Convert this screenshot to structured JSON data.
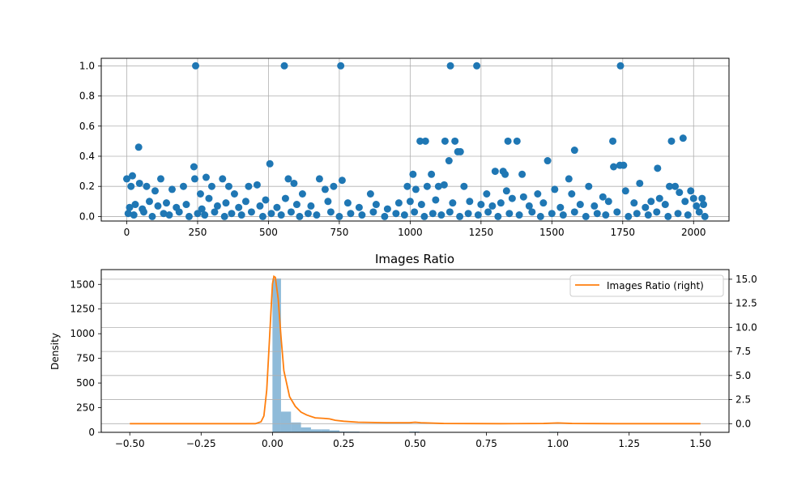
{
  "chart_data": [
    {
      "type": "scatter",
      "title": "",
      "xlabel": "",
      "ylabel": "",
      "xlim": [
        -90,
        2125
      ],
      "ylim": [
        -0.03,
        1.05
      ],
      "grid": true,
      "xticks": [
        0,
        250,
        500,
        750,
        1000,
        1250,
        1500,
        1750,
        2000
      ],
      "yticks": [
        0.0,
        0.2,
        0.4,
        0.6,
        0.8,
        1.0
      ],
      "ytick_labels": [
        "0.0",
        "0.2",
        "0.4",
        "0.6",
        "0.8",
        "1.0"
      ],
      "color": "#1f77b4",
      "points": [
        [
          243,
          1.0
        ],
        [
          556,
          1.0
        ],
        [
          755,
          1.0
        ],
        [
          1142,
          1.0
        ],
        [
          1235,
          1.0
        ],
        [
          1742,
          1.0
        ],
        [
          42,
          0.46
        ],
        [
          1580,
          0.44
        ],
        [
          1168,
          0.43
        ],
        [
          1177,
          0.43
        ],
        [
          1137,
          0.37
        ],
        [
          1485,
          0.37
        ],
        [
          505,
          0.35
        ],
        [
          1753,
          0.34
        ],
        [
          1718,
          0.33
        ],
        [
          1740,
          0.34
        ],
        [
          237,
          0.33
        ],
        [
          1963,
          0.52
        ],
        [
          1035,
          0.5
        ],
        [
          1054,
          0.5
        ],
        [
          1123,
          0.5
        ],
        [
          1158,
          0.5
        ],
        [
          1345,
          0.5
        ],
        [
          1377,
          0.5
        ],
        [
          1715,
          0.5
        ],
        [
          1922,
          0.5
        ],
        [
          1873,
          0.32
        ],
        [
          1300,
          0.3
        ],
        [
          1328,
          0.3
        ],
        [
          1335,
          0.28
        ],
        [
          1395,
          0.28
        ],
        [
          1010,
          0.28
        ],
        [
          1075,
          0.28
        ],
        [
          1935,
          0.2
        ],
        [
          0,
          0.25
        ],
        [
          20,
          0.27
        ],
        [
          45,
          0.22
        ],
        [
          120,
          0.25
        ],
        [
          240,
          0.25
        ],
        [
          280,
          0.26
        ],
        [
          338,
          0.25
        ],
        [
          570,
          0.25
        ],
        [
          680,
          0.25
        ],
        [
          760,
          0.24
        ],
        [
          1560,
          0.25
        ],
        [
          1630,
          0.2
        ],
        [
          1810,
          0.22
        ],
        [
          1915,
          0.2
        ],
        [
          1990,
          0.17
        ],
        [
          2030,
          0.12
        ],
        [
          15,
          0.2
        ],
        [
          70,
          0.2
        ],
        [
          100,
          0.17
        ],
        [
          160,
          0.18
        ],
        [
          200,
          0.2
        ],
        [
          260,
          0.15
        ],
        [
          300,
          0.2
        ],
        [
          360,
          0.2
        ],
        [
          380,
          0.15
        ],
        [
          430,
          0.2
        ],
        [
          460,
          0.21
        ],
        [
          590,
          0.22
        ],
        [
          620,
          0.15
        ],
        [
          700,
          0.18
        ],
        [
          730,
          0.2
        ],
        [
          860,
          0.15
        ],
        [
          990,
          0.2
        ],
        [
          1020,
          0.18
        ],
        [
          1060,
          0.2
        ],
        [
          1100,
          0.2
        ],
        [
          1120,
          0.21
        ],
        [
          1190,
          0.2
        ],
        [
          1270,
          0.15
        ],
        [
          1340,
          0.17
        ],
        [
          1400,
          0.13
        ],
        [
          1450,
          0.15
        ],
        [
          1510,
          0.18
        ],
        [
          1570,
          0.15
        ],
        [
          1680,
          0.13
        ],
        [
          1760,
          0.17
        ],
        [
          1850,
          0.1
        ],
        [
          1950,
          0.16
        ],
        [
          2000,
          0.12
        ],
        [
          10,
          0.06
        ],
        [
          30,
          0.08
        ],
        [
          55,
          0.05
        ],
        [
          80,
          0.1
        ],
        [
          110,
          0.07
        ],
        [
          140,
          0.09
        ],
        [
          175,
          0.06
        ],
        [
          210,
          0.08
        ],
        [
          265,
          0.05
        ],
        [
          290,
          0.12
        ],
        [
          320,
          0.07
        ],
        [
          350,
          0.09
        ],
        [
          395,
          0.06
        ],
        [
          420,
          0.1
        ],
        [
          470,
          0.07
        ],
        [
          490,
          0.11
        ],
        [
          530,
          0.06
        ],
        [
          560,
          0.12
        ],
        [
          600,
          0.08
        ],
        [
          650,
          0.07
        ],
        [
          710,
          0.1
        ],
        [
          780,
          0.09
        ],
        [
          820,
          0.06
        ],
        [
          880,
          0.08
        ],
        [
          920,
          0.05
        ],
        [
          960,
          0.09
        ],
        [
          1000,
          0.1
        ],
        [
          1040,
          0.08
        ],
        [
          1090,
          0.11
        ],
        [
          1150,
          0.09
        ],
        [
          1210,
          0.1
        ],
        [
          1250,
          0.08
        ],
        [
          1290,
          0.07
        ],
        [
          1320,
          0.09
        ],
        [
          1360,
          0.12
        ],
        [
          1420,
          0.07
        ],
        [
          1470,
          0.09
        ],
        [
          1530,
          0.06
        ],
        [
          1600,
          0.08
        ],
        [
          1650,
          0.07
        ],
        [
          1700,
          0.1
        ],
        [
          1790,
          0.09
        ],
        [
          1830,
          0.06
        ],
        [
          1880,
          0.12
        ],
        [
          1900,
          0.08
        ],
        [
          1970,
          0.1
        ],
        [
          2010,
          0.07
        ],
        [
          2035,
          0.08
        ],
        [
          5,
          0.02
        ],
        [
          25,
          0.01
        ],
        [
          60,
          0.03
        ],
        [
          90,
          0.0
        ],
        [
          130,
          0.02
        ],
        [
          150,
          0.01
        ],
        [
          185,
          0.03
        ],
        [
          220,
          0.0
        ],
        [
          250,
          0.02
        ],
        [
          275,
          0.01
        ],
        [
          310,
          0.03
        ],
        [
          345,
          0.0
        ],
        [
          370,
          0.02
        ],
        [
          405,
          0.01
        ],
        [
          440,
          0.03
        ],
        [
          480,
          0.0
        ],
        [
          510,
          0.02
        ],
        [
          545,
          0.01
        ],
        [
          580,
          0.03
        ],
        [
          610,
          0.0
        ],
        [
          640,
          0.02
        ],
        [
          670,
          0.01
        ],
        [
          720,
          0.03
        ],
        [
          750,
          0.0
        ],
        [
          790,
          0.02
        ],
        [
          830,
          0.01
        ],
        [
          870,
          0.03
        ],
        [
          910,
          0.0
        ],
        [
          950,
          0.02
        ],
        [
          980,
          0.01
        ],
        [
          1015,
          0.03
        ],
        [
          1050,
          0.0
        ],
        [
          1080,
          0.02
        ],
        [
          1110,
          0.01
        ],
        [
          1140,
          0.03
        ],
        [
          1175,
          0.0
        ],
        [
          1205,
          0.02
        ],
        [
          1240,
          0.01
        ],
        [
          1275,
          0.03
        ],
        [
          1310,
          0.0
        ],
        [
          1350,
          0.02
        ],
        [
          1385,
          0.01
        ],
        [
          1430,
          0.03
        ],
        [
          1460,
          0.0
        ],
        [
          1500,
          0.02
        ],
        [
          1540,
          0.01
        ],
        [
          1580,
          0.03
        ],
        [
          1620,
          0.0
        ],
        [
          1660,
          0.02
        ],
        [
          1690,
          0.01
        ],
        [
          1730,
          0.03
        ],
        [
          1770,
          0.0
        ],
        [
          1800,
          0.02
        ],
        [
          1840,
          0.01
        ],
        [
          1870,
          0.03
        ],
        [
          1910,
          0.0
        ],
        [
          1945,
          0.02
        ],
        [
          1980,
          0.01
        ],
        [
          2020,
          0.03
        ],
        [
          2040,
          0.0
        ]
      ]
    },
    {
      "type": "bar",
      "subtype": "histogram with density line",
      "title": "Images Ratio",
      "xlabel": "",
      "ylabel": "Density",
      "xlim": [
        -0.6,
        1.6
      ],
      "ylim": [
        0,
        1650
      ],
      "y2lim": [
        -0.9,
        16.0
      ],
      "grid": true,
      "xticks": [
        -0.5,
        -0.25,
        0.0,
        0.25,
        0.5,
        0.75,
        1.0,
        1.25,
        1.5
      ],
      "xtick_labels": [
        "−0.50",
        "−0.25",
        "0.00",
        "0.25",
        "0.50",
        "0.75",
        "1.00",
        "1.25",
        "1.50"
      ],
      "yticks": [
        0,
        250,
        500,
        750,
        1000,
        1250,
        1500
      ],
      "y2ticks": [
        0.0,
        2.5,
        5.0,
        7.5,
        10.0,
        12.5,
        15.0
      ],
      "y2tick_labels": [
        "0.0",
        "2.5",
        "5.0",
        "7.5",
        "10.0",
        "12.5",
        "15.0"
      ],
      "hist_color": "#1f77b4",
      "hist_opacity": 0.5,
      "histogram": [
        {
          "x0": 0.0,
          "x1": 0.03,
          "value": 1560
        },
        {
          "x0": 0.03,
          "x1": 0.065,
          "value": 210
        },
        {
          "x0": 0.065,
          "x1": 0.1,
          "value": 100
        },
        {
          "x0": 0.1,
          "x1": 0.135,
          "value": 50
        },
        {
          "x0": 0.135,
          "x1": 0.17,
          "value": 30
        },
        {
          "x0": 0.17,
          "x1": 0.2,
          "value": 30
        },
        {
          "x0": 0.2,
          "x1": 0.235,
          "value": 20
        },
        {
          "x0": 0.235,
          "x1": 0.27,
          "value": 8
        },
        {
          "x0": 0.27,
          "x1": 0.305,
          "value": 8
        },
        {
          "x0": 0.305,
          "x1": 0.34,
          "value": 5
        },
        {
          "x0": 0.34,
          "x1": 0.375,
          "value": 3
        },
        {
          "x0": 0.375,
          "x1": 0.41,
          "value": 2
        },
        {
          "x0": 0.41,
          "x1": 0.445,
          "value": 2
        },
        {
          "x0": 0.445,
          "x1": 0.48,
          "value": 1
        },
        {
          "x0": 0.48,
          "x1": 0.515,
          "value": 8
        },
        {
          "x0": 0.515,
          "x1": 0.55,
          "value": 2
        },
        {
          "x0": 0.97,
          "x1": 1.005,
          "value": 6
        }
      ],
      "series": [
        {
          "name": "Images Ratio (right)",
          "axis": "right",
          "color": "#ff7f0e",
          "x": [
            -0.5,
            -0.2,
            -0.06,
            -0.04,
            -0.03,
            -0.02,
            -0.01,
            0.0,
            0.005,
            0.01,
            0.02,
            0.03,
            0.04,
            0.06,
            0.08,
            0.1,
            0.12,
            0.15,
            0.18,
            0.2,
            0.22,
            0.25,
            0.3,
            0.4,
            0.48,
            0.5,
            0.52,
            0.6,
            0.8,
            0.95,
            1.0,
            1.05,
            1.2,
            1.5
          ],
          "y": [
            0.0,
            0.0,
            0.0,
            0.2,
            0.8,
            3.5,
            9.0,
            14.5,
            15.3,
            15.2,
            13.0,
            9.0,
            5.5,
            2.8,
            1.8,
            1.2,
            0.9,
            0.6,
            0.55,
            0.5,
            0.35,
            0.25,
            0.15,
            0.1,
            0.1,
            0.15,
            0.1,
            0.02,
            0.0,
            0.02,
            0.08,
            0.02,
            0.0,
            0.0
          ]
        }
      ],
      "legend": {
        "position": "top-right",
        "entries": [
          "Images Ratio (right)"
        ]
      }
    }
  ]
}
